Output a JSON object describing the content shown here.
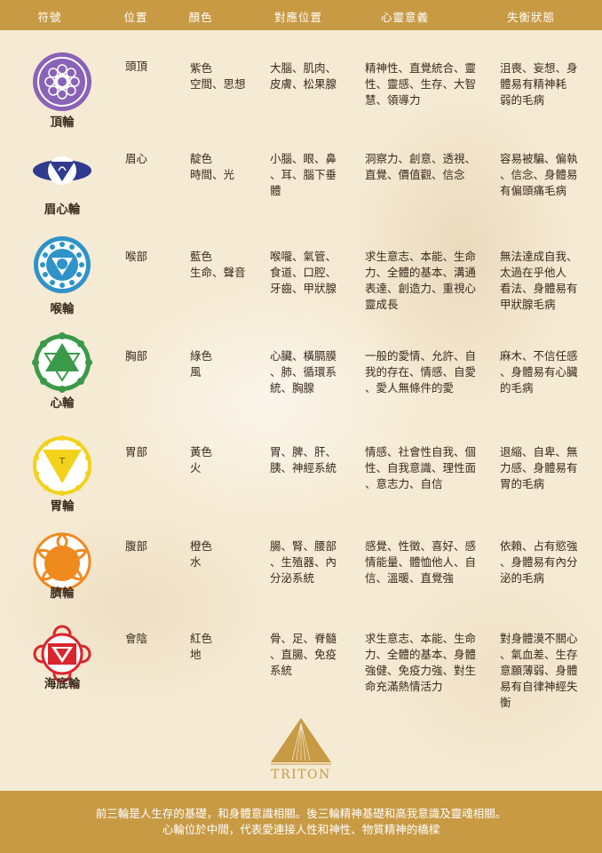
{
  "header": {
    "col_symbol": "符號",
    "col_position": "位置",
    "col_color": "顏色",
    "col_body": "對應位置",
    "col_mind": "心靈意義",
    "col_imbalance": "失衡狀態"
  },
  "rows": [
    {
      "name": "頂輪",
      "icon": "crown-chakra-icon",
      "position": "頭頂",
      "color_text": "紫色\n空間、思想",
      "body": "大腦、肌肉、\n皮膚、松果腺",
      "mind": "精神性、直覺統合、靈\n性、靈感、生存、大智\n慧、領導力",
      "imbalance": "沮喪、妄想、身\n體易有精神耗\n弱的毛病",
      "accent": "#8a63b8"
    },
    {
      "name": "眉心輪",
      "icon": "third-eye-chakra-icon",
      "position": "眉心",
      "color_text": "靛色\n時間、光",
      "body": "小腦、眼、鼻\n、耳、腦下垂\n體",
      "mind": "洞察力、創意、透視、\n直覺、價值觀、信念",
      "imbalance": "容易被騙、偏執\n、信念、身體易\n有偏頭痛毛病",
      "accent": "#2e3b8f"
    },
    {
      "name": "喉輪",
      "icon": "throat-chakra-icon",
      "position": "喉部",
      "color_text": "藍色\n生命、聲音",
      "body": "喉嚨、氣管、\n食道、口腔、\n牙齒、甲狀腺",
      "mind": "求生意志、本能、生命\n力、全體的基本、溝通\n表達、創造力、重視心\n靈成長",
      "imbalance": "無法達成自我、\n太過在乎他人\n看法、身體易有\n甲狀腺毛病",
      "accent": "#2f93c9"
    },
    {
      "name": "心輪",
      "icon": "heart-chakra-icon",
      "position": "胸部",
      "color_text": "綠色\n風",
      "body": "心臟、橫膈膜\n、肺、循環系\n統、胸腺",
      "mind": "一般的愛情、允許、自\n我的存在、情感、自愛\n、愛人無條件的愛",
      "imbalance": "麻木、不信任感\n、身體易有心臟\n的毛病",
      "accent": "#3a9a4a"
    },
    {
      "name": "胃輪",
      "icon": "solar-plexus-chakra-icon",
      "position": "胃部",
      "color_text": "黃色\n火",
      "body": "胃、脾、肝、\n胰、神經系統",
      "mind": "情感、社會性自我、個\n性、自我意識、理性面\n、意志力、自信",
      "imbalance": "退縮、自卑、無\n力感、身體易有\n胃的毛病",
      "accent": "#f2d21b"
    },
    {
      "name": "臍輪",
      "icon": "sacral-chakra-icon",
      "position": "腹部",
      "color_text": "橙色\n水",
      "body": "腸、腎、腰部\n、生殖器、內\n分泌系統",
      "mind": "感覺、性徵、喜好、感\n情能量、體恤他人、自\n信、溫暖、直覺強",
      "imbalance": "依賴、占有慾強\n、身體易有內分\n泌的毛病",
      "accent": "#ef8a1f"
    },
    {
      "name": "海底輪",
      "icon": "root-chakra-icon",
      "position": "會陰",
      "color_text": "紅色\n地",
      "body": "骨、足、脊髓\n、直腸、免疫\n系統",
      "mind": "求生意志、本能、生命\n力、全體的基本、身體\n強健、免疫力強、對生\n命充滿熱情活力",
      "imbalance": "對身體漠不關心\n、氣血差、生存\n意願薄弱、身體\n易有自律神經失\n衡",
      "accent": "#d9262c"
    }
  ],
  "logo": {
    "text": "TRITON",
    "icon": "triton-pyramid-logo-icon"
  },
  "footer": {
    "line1": "前三輪是人生存的基礎，和身體意識相關。後三輪精神基礎和高我意識及靈魂相關。",
    "line2": "心輪位於中間，代表愛連接人性和神性、物質精神的橋樑"
  },
  "colors": {
    "header_bg": "#c89a44",
    "page_bg": "#f5ead3",
    "text": "#3a2a1e"
  }
}
